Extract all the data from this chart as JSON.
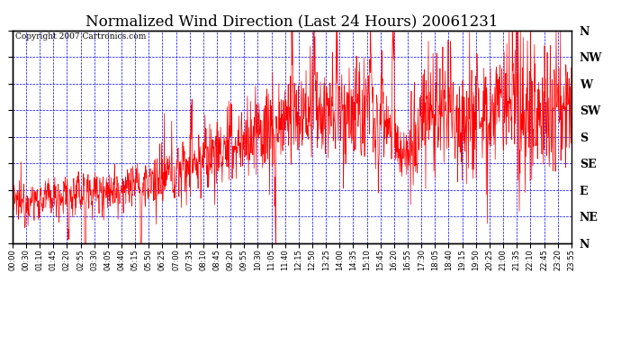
{
  "title": "Normalized Wind Direction (Last 24 Hours) 20061231",
  "copyright": "Copyright 2007 Cartronics.com",
  "background_color": "#ffffff",
  "plot_bg_color": "#ffffff",
  "line_color": "#ff0000",
  "grid_color": "#0000ff",
  "border_color": "#000000",
  "y_labels": [
    "N",
    "NW",
    "W",
    "SW",
    "S",
    "SE",
    "E",
    "NE",
    "N"
  ],
  "y_tick_positions": [
    8,
    7,
    6,
    5,
    4,
    3,
    2,
    1,
    0
  ],
  "y_min": 0,
  "y_max": 8,
  "x_min": 0,
  "x_max": 24,
  "x_tick_labels": [
    "00:00",
    "00:30",
    "01:10",
    "01:45",
    "02:20",
    "02:55",
    "03:30",
    "04:05",
    "04:40",
    "05:15",
    "05:50",
    "06:25",
    "07:00",
    "07:35",
    "08:10",
    "08:45",
    "09:20",
    "09:55",
    "10:30",
    "11:05",
    "11:40",
    "12:15",
    "12:50",
    "13:25",
    "14:00",
    "14:35",
    "15:10",
    "15:45",
    "16:20",
    "16:55",
    "17:30",
    "18:05",
    "18:40",
    "19:15",
    "19:50",
    "20:25",
    "21:00",
    "21:35",
    "22:10",
    "22:45",
    "23:20",
    "23:55"
  ],
  "title_fontsize": 12,
  "copyright_fontsize": 6.5,
  "ylabel_fontsize": 9,
  "tick_fontsize": 6
}
